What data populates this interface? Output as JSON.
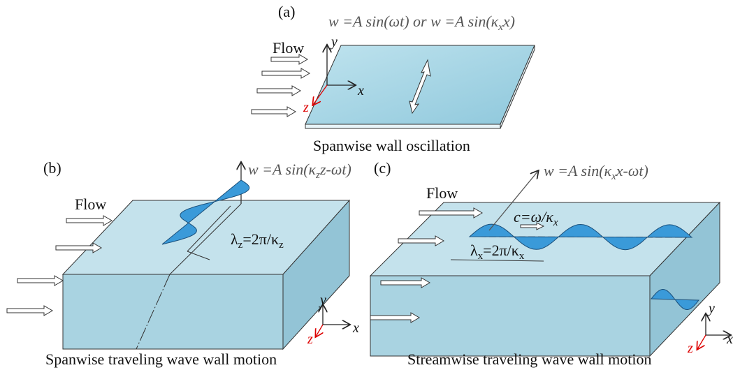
{
  "panel_a": {
    "label": "(a)",
    "equation": [
      {
        "t": "w =A sin(ωt) or w =A sin(κ"
      },
      {
        "t": "x",
        "sub": true
      },
      {
        "t": "x)"
      }
    ],
    "flow": "Flow",
    "axis_y": "y",
    "axis_x": "x",
    "axis_z": "z",
    "caption": "Spanwise wall oscillation"
  },
  "panel_b": {
    "label": "(b)",
    "equation": [
      {
        "t": "w =A sin(κ"
      },
      {
        "t": "z",
        "sub": true
      },
      {
        "t": "z-ωt)"
      }
    ],
    "flow": "Flow",
    "wavelength": [
      {
        "t": "λ"
      },
      {
        "t": "z",
        "sub": true
      },
      {
        "t": "=2π/κ"
      },
      {
        "t": "z",
        "sub": true
      }
    ],
    "axis_y": "y",
    "axis_x": "x",
    "axis_z": "z",
    "caption": "Spanwise traveling wave wall motion"
  },
  "panel_c": {
    "label": "(c)",
    "equation": [
      {
        "t": "w =A sin(κ"
      },
      {
        "t": "x",
        "sub": true
      },
      {
        "t": "x-ωt)"
      }
    ],
    "flow": "Flow",
    "speed": [
      {
        "t": "c=ω/κ"
      },
      {
        "t": "x",
        "sub": true
      }
    ],
    "wavelength": [
      {
        "t": "λ"
      },
      {
        "t": "x",
        "sub": true
      },
      {
        "t": "=2π/κ"
      },
      {
        "t": "x",
        "sub": true
      }
    ],
    "axis_y": "y",
    "axis_x": "x",
    "axis_z": "z",
    "caption": "Streamwise traveling wave wall motion"
  }
}
